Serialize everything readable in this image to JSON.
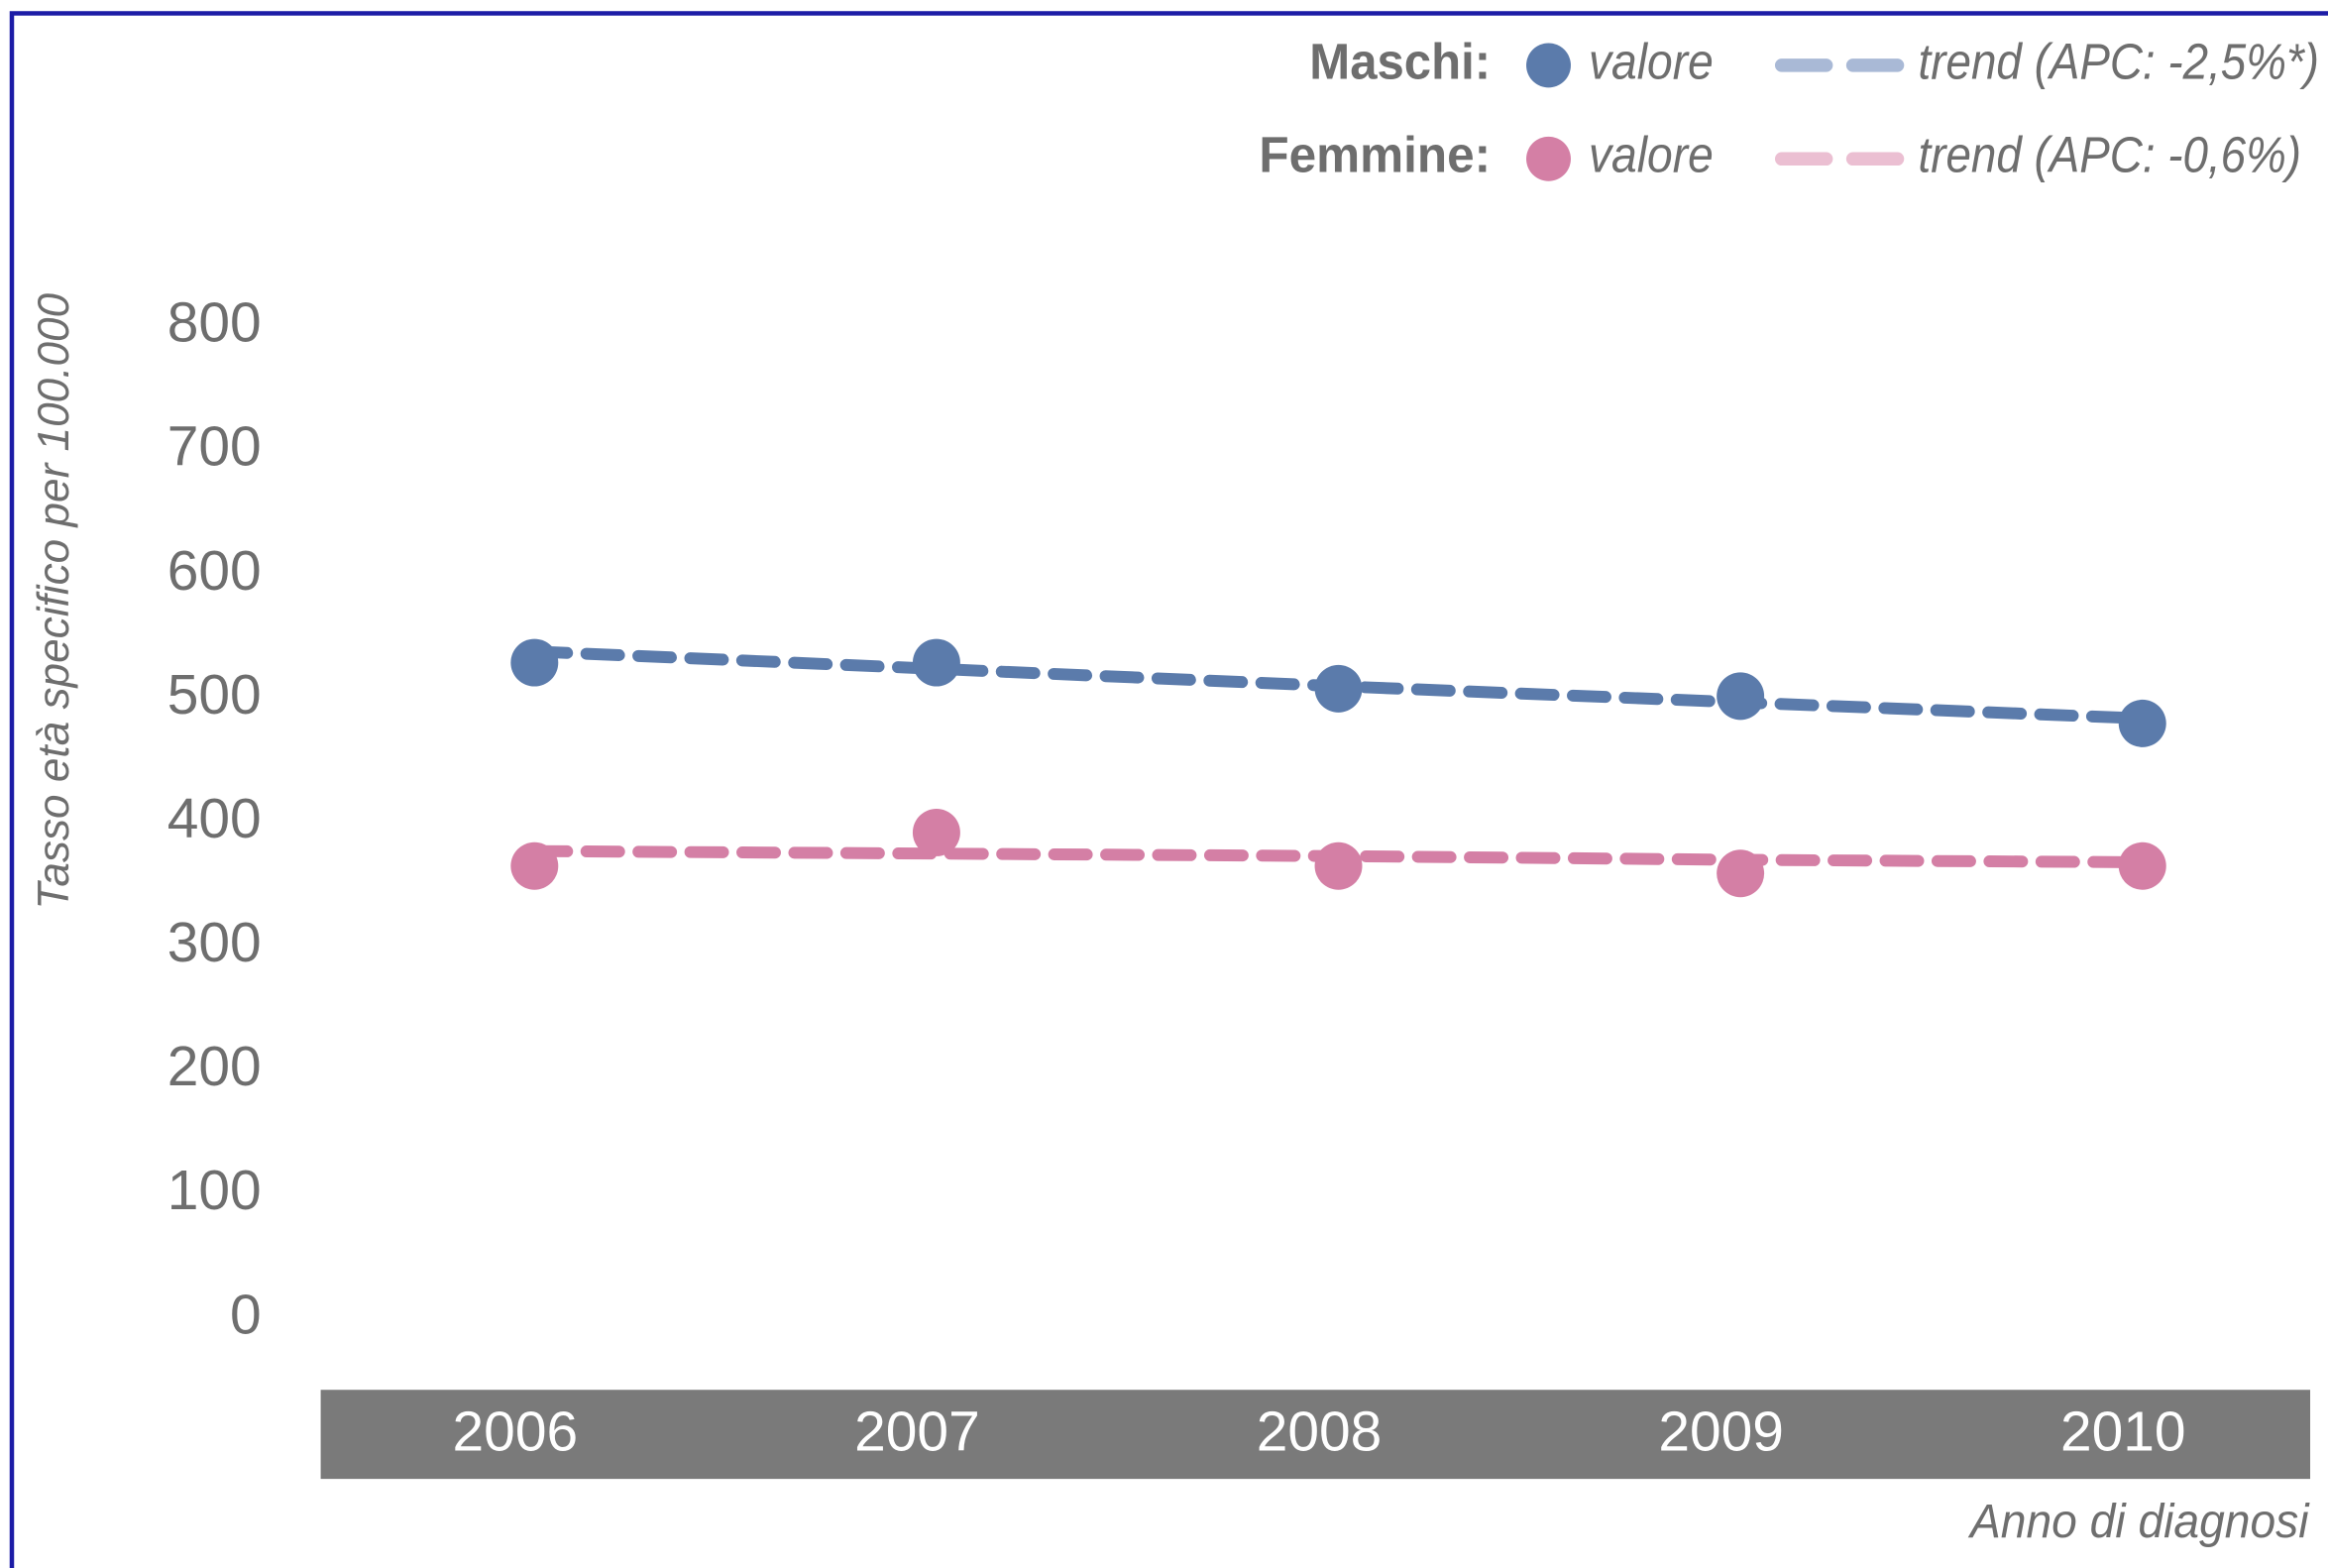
{
  "chart_data": {
    "type": "line",
    "y_label": "Tasso età specifico per 100.000",
    "x_label": "Anno di diagnosi",
    "categories": [
      "2006",
      "2007",
      "2008",
      "2009",
      "2010"
    ],
    "ylim": [
      0,
      800
    ],
    "yticks": [
      0,
      100,
      200,
      300,
      400,
      500,
      600,
      700,
      800
    ],
    "grid": false,
    "legend_groups": [
      "Maschi:",
      "Femmine:"
    ],
    "series": [
      {
        "name": "valore",
        "color": "#5b7bab",
        "style": "markers",
        "values": [
          529,
          529,
          508,
          502,
          480
        ]
      },
      {
        "name": "trend (APC: -2,5%*)",
        "color": "#5b7bab",
        "legend_color": "#a9b9d6",
        "style": "dashed",
        "values": [
          538,
          524,
          510,
          497,
          484
        ]
      },
      {
        "name": "valore",
        "color": "#d47fa5",
        "style": "markers",
        "values": [
          365,
          392,
          365,
          359,
          365
        ]
      },
      {
        "name": "trend (APC: -0,6%)",
        "color": "#d47fa5",
        "legend_color": "#ebbfd2",
        "style": "dashed",
        "values": [
          377,
          375,
          373,
          370,
          368
        ]
      }
    ]
  }
}
